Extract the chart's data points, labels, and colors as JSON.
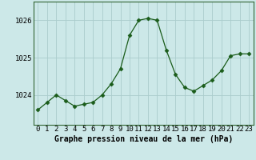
{
  "x": [
    0,
    1,
    2,
    3,
    4,
    5,
    6,
    7,
    8,
    9,
    10,
    11,
    12,
    13,
    14,
    15,
    16,
    17,
    18,
    19,
    20,
    21,
    22,
    23
  ],
  "y": [
    1023.6,
    1023.8,
    1024.0,
    1023.85,
    1023.7,
    1023.75,
    1023.8,
    1024.0,
    1024.3,
    1024.7,
    1025.6,
    1026.0,
    1026.05,
    1026.0,
    1025.2,
    1024.55,
    1024.2,
    1024.1,
    1024.25,
    1024.4,
    1024.65,
    1025.05,
    1025.1,
    1025.1
  ],
  "line_color": "#1a5c1a",
  "marker": "D",
  "marker_size": 2.5,
  "bg_color": "#cce8e8",
  "grid_color": "#aacccc",
  "title": "Graphe pression niveau de la mer (hPa)",
  "xlabel_ticks": [
    "0",
    "1",
    "2",
    "3",
    "4",
    "5",
    "6",
    "7",
    "8",
    "9",
    "10",
    "11",
    "12",
    "13",
    "14",
    "15",
    "16",
    "17",
    "18",
    "19",
    "20",
    "21",
    "22",
    "23"
  ],
  "yticks": [
    1024,
    1025,
    1026
  ],
  "ylim": [
    1023.2,
    1026.5
  ],
  "xlim": [
    -0.5,
    23.5
  ],
  "tick_fontsize": 6.5,
  "title_fontsize": 7.0,
  "border_color": "#336633"
}
